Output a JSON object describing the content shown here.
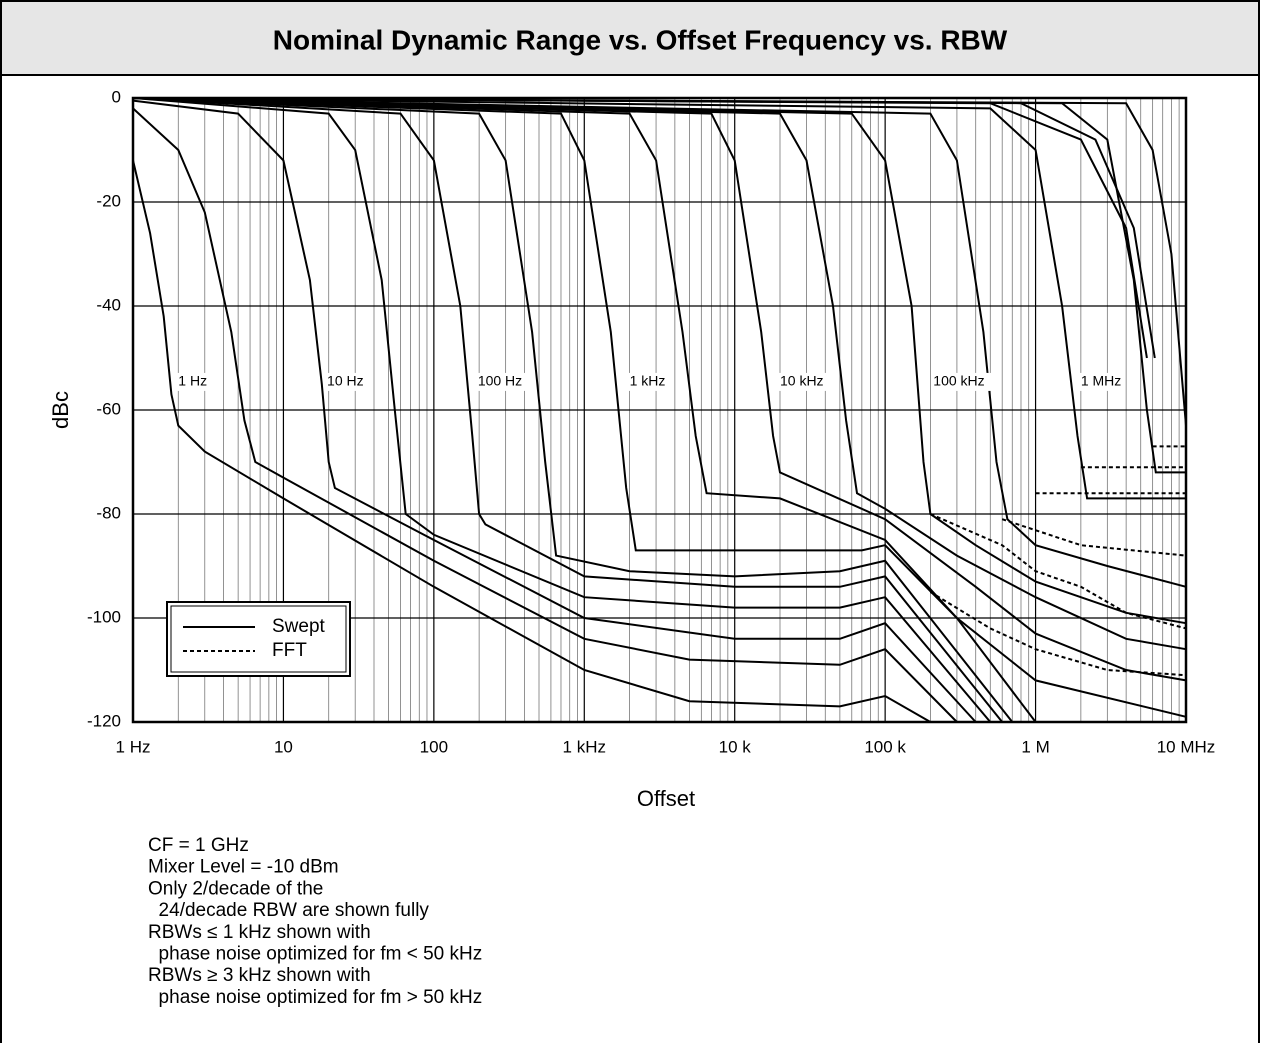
{
  "chart_data": {
    "type": "line",
    "title": "Nominal Dynamic Range vs. Offset Frequency vs. RBW",
    "x_label": "Offset",
    "y_label": "dBc",
    "x_log": true,
    "grid": true,
    "minor_grid": true,
    "xlim": [
      1,
      10000000
    ],
    "ylim": [
      -120,
      0
    ],
    "xticks": [
      {
        "value": 1,
        "label": "1 Hz"
      },
      10,
      100,
      {
        "value": 1000,
        "label": "1 kHz"
      },
      {
        "value": 10000,
        "label": "10 k"
      },
      {
        "value": 100000,
        "label": "100 k"
      },
      {
        "value": 1000000,
        "label": "1 M"
      },
      {
        "value": 10000000,
        "label": "10 MHz"
      }
    ],
    "yticks": [
      0,
      -20,
      -40,
      -60,
      -80,
      -100,
      -120
    ],
    "color": "#000000",
    "legend": {
      "position": "lower left",
      "entries": [
        {
          "name": "Swept",
          "style": "solid"
        },
        {
          "name": "FFT",
          "style": "dashed"
        }
      ]
    },
    "curve_labels": [
      {
        "text": "1 Hz",
        "x": 2,
        "y": -54.6
      },
      {
        "text": "10 Hz",
        "x": 19.5,
        "y": -54.6
      },
      {
        "text": "100 Hz",
        "x": 196,
        "y": -54.6
      },
      {
        "text": "1 kHz",
        "x": 2000,
        "y": -54.6
      },
      {
        "text": "10 kHz",
        "x": 20000,
        "y": -54.6
      },
      {
        "text": "100 kHz",
        "x": 209000,
        "y": -54.6
      },
      {
        "text": "1 MHz",
        "x": 2000000,
        "y": -54.6
      }
    ],
    "series": [
      {
        "style": "solid",
        "x": [
          1,
          1.3,
          1.6,
          1.8,
          2,
          3,
          10,
          100,
          1000,
          5000,
          50000,
          100000,
          200000
        ],
        "values": [
          -12,
          -26,
          -42,
          -57,
          -63,
          -68,
          -77,
          -94,
          -110,
          -116,
          -117,
          -115,
          -120
        ]
      },
      {
        "style": "solid",
        "x": [
          1,
          2,
          3,
          4.5,
          5.5,
          6.5,
          10,
          100,
          1000,
          5000,
          50000,
          100000,
          300000
        ],
        "values": [
          -2,
          -10,
          -22,
          -45,
          -62,
          -70,
          -73,
          -89,
          -104,
          -108,
          -109,
          -106,
          -120
        ]
      },
      {
        "style": "solid",
        "x": [
          1,
          5,
          10,
          15,
          18,
          20,
          22,
          100,
          1000,
          10000,
          50000,
          100000,
          400000
        ],
        "values": [
          -0.5,
          -3,
          -12,
          -35,
          -55,
          -70,
          -75,
          -85,
          -100,
          -104,
          -104,
          -101,
          -120
        ]
      },
      {
        "style": "solid",
        "x": [
          1,
          20,
          30,
          45,
          55,
          65,
          100,
          1000,
          10000,
          50000,
          100000,
          500000
        ],
        "values": [
          0,
          -3,
          -10,
          -35,
          -60,
          -80,
          -84,
          -96,
          -98,
          -98,
          -96,
          -120
        ]
      },
      {
        "style": "solid",
        "x": [
          1,
          60,
          100,
          150,
          180,
          200,
          220,
          1000,
          10000,
          50000,
          100000,
          600000
        ],
        "values": [
          0,
          -3,
          -12,
          -40,
          -65,
          -80,
          -82,
          -92,
          -94,
          -94,
          -92,
          -120
        ]
      },
      {
        "style": "solid",
        "x": [
          1,
          200,
          300,
          450,
          550,
          650,
          2000,
          10000,
          50000,
          100000,
          700000
        ],
        "values": [
          0,
          -3,
          -12,
          -45,
          -70,
          -88,
          -91,
          -92,
          -91,
          -89,
          -120
        ]
      },
      {
        "style": "solid",
        "x": [
          1,
          700,
          1000,
          1500,
          1900,
          2200,
          10000,
          70000,
          100000,
          300000,
          1000000
        ],
        "values": [
          0,
          -3,
          -12,
          -45,
          -75,
          -87,
          -87,
          -87,
          -86,
          -100,
          -120
        ]
      },
      {
        "style": "solid",
        "x": [
          1,
          2000,
          3000,
          4500,
          5500,
          6500,
          20000,
          100000,
          300000,
          1000000,
          10000000
        ],
        "values": [
          0,
          -3,
          -12,
          -45,
          -65,
          -76,
          -77,
          -85,
          -100,
          -112,
          -119
        ]
      },
      {
        "style": "solid",
        "x": [
          1,
          7000,
          10000,
          15000,
          18000,
          20000,
          100000,
          400000,
          1000000,
          4000000,
          10000000
        ],
        "values": [
          0,
          -3,
          -12,
          -45,
          -65,
          -72,
          -81,
          -94,
          -103,
          -110,
          -112
        ]
      },
      {
        "style": "solid",
        "x": [
          1,
          20000,
          30000,
          45000,
          55000,
          65000,
          100000,
          300000,
          1000000,
          4000000,
          10000000
        ],
        "values": [
          0,
          -3,
          -12,
          -40,
          -62,
          -76,
          -79,
          -88,
          -96,
          -104,
          -106
        ]
      },
      {
        "style": "solid",
        "x": [
          1,
          60000,
          100000,
          150000,
          180000,
          200000,
          400000,
          1000000,
          4000000,
          10000000
        ],
        "values": [
          0,
          -3,
          -12,
          -40,
          -70,
          -80,
          -86,
          -93,
          -99,
          -101
        ]
      },
      {
        "style": "solid",
        "x": [
          1,
          200000,
          300000,
          450000,
          550000,
          650000,
          1000000,
          3000000,
          10000000
        ],
        "values": [
          0,
          -3,
          -12,
          -45,
          -70,
          -81,
          -86,
          -90,
          -94
        ]
      },
      {
        "style": "solid",
        "x": [
          1,
          500000,
          1000000,
          1500000,
          1900000,
          2200000,
          10000000
        ],
        "values": [
          0,
          -2,
          -10,
          -40,
          -65,
          -77,
          -77
        ]
      },
      {
        "style": "solid",
        "x": [
          1,
          1500000,
          3000000,
          4500000,
          5500000,
          6300000,
          10000000
        ],
        "values": [
          0,
          -1,
          -8,
          -35,
          -60,
          -72,
          -72
        ]
      },
      {
        "style": "solid",
        "x": [
          1,
          4000000,
          6000000,
          8000000,
          10000000
        ],
        "values": [
          0,
          -1,
          -10,
          -30,
          -63
        ]
      },
      {
        "style": "solid",
        "x": [
          1,
          500000,
          2000000,
          4000000,
          5500000
        ],
        "values": [
          0,
          -1,
          -8,
          -25,
          -50
        ]
      },
      {
        "style": "solid",
        "x": [
          1,
          800000,
          2500000,
          4500000,
          6200000
        ],
        "values": [
          0,
          -1,
          -8,
          -25,
          -50
        ]
      },
      {
        "style": "dashed",
        "x": [
          200000,
          600000,
          1000000,
          2000000,
          4000000,
          10000000
        ],
        "values": [
          -80,
          -86,
          -91,
          -94,
          -99,
          -102
        ]
      },
      {
        "style": "dashed",
        "x": [
          600000,
          2000000,
          10000000
        ],
        "values": [
          -81,
          -86,
          -88
        ]
      },
      {
        "style": "dashed",
        "x": [
          1000000,
          10000000
        ],
        "values": [
          -76,
          -76
        ]
      },
      {
        "style": "dashed",
        "x": [
          2000000,
          10000000
        ],
        "values": [
          -71,
          -71
        ]
      },
      {
        "style": "dashed",
        "x": [
          6000000,
          10000000
        ],
        "values": [
          -67,
          -67
        ]
      },
      {
        "style": "dashed",
        "x": [
          200000,
          500000,
          1000000,
          3000000,
          10000000
        ],
        "values": [
          -95,
          -102,
          -106,
          -110,
          -111
        ]
      }
    ],
    "notes": [
      "CF = 1 GHz",
      "Mixer Level = -10 dBm",
      "Only 2/decade of the",
      "  24/decade RBW are shown fully",
      "RBWs ≤ 1 kHz shown with",
      "  phase noise optimized for fm < 50 kHz",
      "RBWs ≥ 3 kHz shown with",
      "  phase noise optimized for fm > 50 kHz"
    ]
  }
}
